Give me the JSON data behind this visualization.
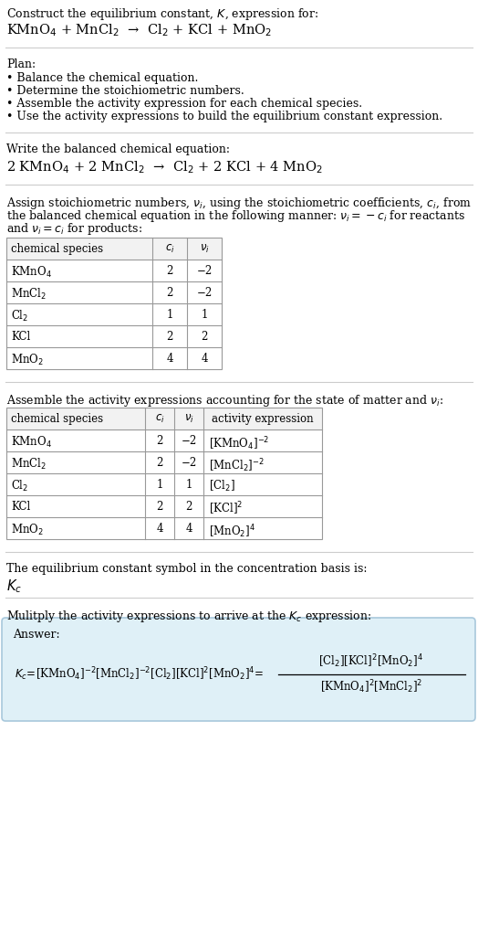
{
  "title_line1": "Construct the equilibrium constant, $K$, expression for:",
  "title_line2": "KMnO$_4$ + MnCl$_2$  →  Cl$_2$ + KCl + MnO$_2$",
  "plan_header": "Plan:",
  "plan_items": [
    "• Balance the chemical equation.",
    "• Determine the stoichiometric numbers.",
    "• Assemble the activity expression for each chemical species.",
    "• Use the activity expressions to build the equilibrium constant expression."
  ],
  "balanced_header": "Write the balanced chemical equation:",
  "balanced_eq": "2 KMnO$_4$ + 2 MnCl$_2$  →  Cl$_2$ + 2 KCl + 4 MnO$_2$",
  "stoich_lines": [
    "Assign stoichiometric numbers, $\\nu_i$, using the stoichiometric coefficients, $c_i$, from",
    "the balanced chemical equation in the following manner: $\\nu_i = -c_i$ for reactants",
    "and $\\nu_i = c_i$ for products:"
  ],
  "table1_cols": [
    "chemical species",
    "$c_i$",
    "$\\nu_i$"
  ],
  "table1_rows": [
    [
      "KMnO$_4$",
      "2",
      "−2"
    ],
    [
      "MnCl$_2$",
      "2",
      "−2"
    ],
    [
      "Cl$_2$",
      "1",
      "1"
    ],
    [
      "KCl",
      "2",
      "2"
    ],
    [
      "MnO$_2$",
      "4",
      "4"
    ]
  ],
  "activity_header": "Assemble the activity expressions accounting for the state of matter and $\\nu_i$:",
  "table2_cols": [
    "chemical species",
    "$c_i$",
    "$\\nu_i$",
    "activity expression"
  ],
  "table2_rows": [
    [
      "KMnO$_4$",
      "2",
      "−2",
      "[KMnO$_4$]$^{-2}$"
    ],
    [
      "MnCl$_2$",
      "2",
      "−2",
      "[MnCl$_2$]$^{-2}$"
    ],
    [
      "Cl$_2$",
      "1",
      "1",
      "[Cl$_2$]"
    ],
    [
      "KCl",
      "2",
      "2",
      "[KCl]$^2$"
    ],
    [
      "MnO$_2$",
      "4",
      "4",
      "[MnO$_2$]$^4$"
    ]
  ],
  "kc_header": "The equilibrium constant symbol in the concentration basis is:",
  "kc_symbol": "$K_c$",
  "multiply_header": "Mulitply the activity expressions to arrive at the $K_c$ expression:",
  "answer_label": "Answer:",
  "bg_color": "#ffffff",
  "table_header_bg": "#f2f2f2",
  "answer_box_bg": "#dff0f7",
  "answer_box_border": "#a8c8dc",
  "separator_color": "#bbbbbb",
  "text_color": "#000000"
}
